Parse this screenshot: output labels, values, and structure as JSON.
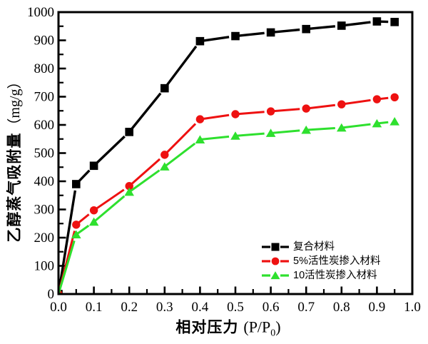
{
  "chart_data": {
    "type": "line",
    "title": "",
    "xlabel": {
      "cn": "相对压力",
      "latin_prefix": "(P/P",
      "sub": "0",
      "suffix": ")"
    },
    "ylabel": {
      "cn": "乙醇蒸气吸附量",
      "unit": "（mg/g）"
    },
    "xlim": [
      0,
      1.0
    ],
    "ylim": [
      0,
      1000
    ],
    "grid": false,
    "legend_position": "inside-bottom-right",
    "x_ticks": [
      "0.0",
      "0.1",
      "0.2",
      "0.3",
      "0.4",
      "0.5",
      "0.6",
      "0.7",
      "0.8",
      "0.9",
      "1.0"
    ],
    "y_ticks": [
      "0",
      "100",
      "200",
      "300",
      "400",
      "500",
      "600",
      "700",
      "800",
      "900",
      "1000"
    ],
    "x": [
      0,
      0.05,
      0.1,
      0.2,
      0.3,
      0.4,
      0.5,
      0.6,
      0.7,
      0.8,
      0.9,
      0.95
    ],
    "series": [
      {
        "name": "复合材料",
        "color": "#000000",
        "marker": "square",
        "line_width": 3.4,
        "values": [
          0,
          390,
          455,
          575,
          730,
          897,
          915,
          928,
          940,
          952,
          967,
          965
        ]
      },
      {
        "name": "5%活性炭掺入材料",
        "color": "#ee1111",
        "marker": "circle",
        "line_width": 3.0,
        "values": [
          0,
          246,
          297,
          383,
          494,
          620,
          638,
          648,
          658,
          673,
          691,
          698
        ]
      },
      {
        "name": "10活性炭掺入材料",
        "color": "#2ee02e",
        "marker": "triangle",
        "line_width": 3.0,
        "values": [
          0,
          211,
          256,
          362,
          452,
          548,
          561,
          571,
          582,
          590,
          605,
          612
        ]
      }
    ]
  }
}
